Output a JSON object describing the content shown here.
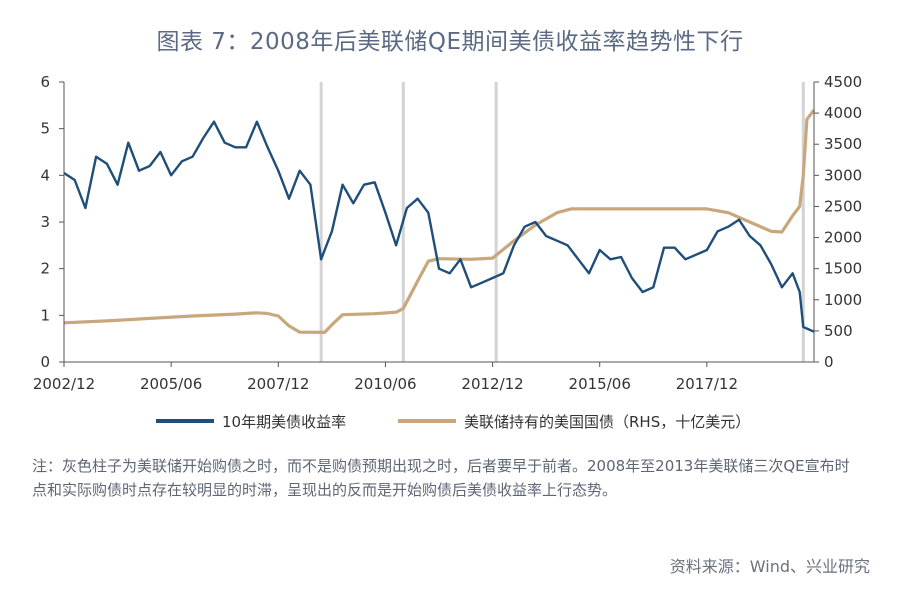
{
  "title": "图表 7：2008年后美联储QE期间美债收益率趋势性下行",
  "note": "注：灰色柱子为美联储开始购债之时，而不是购债预期出现之时，后者要早于前者。2008年至2013年美联储三次QE宣布时点和实际购债时点存在较明显的时滞，呈现出的反而是开始购债后美债收益率上行态势。",
  "source": "资料来源：Wind、兴业研究",
  "colors": {
    "yield": "#1f4e79",
    "holdings": "#c9a77c",
    "shade": "#d3d3d3",
    "axis": "#555555"
  },
  "chart_data": {
    "type": "line",
    "x_tick_labels": [
      "2002/12",
      "2005/06",
      "2007/12",
      "2010/06",
      "2012/12",
      "2015/06",
      "2017/12"
    ],
    "x_range": [
      "2002/12",
      "2020/06"
    ],
    "y_left": {
      "range": [
        0,
        6
      ],
      "ticks": [
        "0",
        "1",
        "2",
        "3",
        "4",
        "5",
        "6"
      ]
    },
    "y_right": {
      "range": [
        0,
        4500
      ],
      "ticks": [
        "0",
        "500",
        "1000",
        "1500",
        "2000",
        "2500",
        "3000",
        "3500",
        "4000",
        "4500"
      ]
    },
    "shaded_markers": [
      "2008/12",
      "2010/11",
      "2013/01",
      "2020/03"
    ],
    "series": [
      {
        "name": "10年期美债收益率",
        "axis": "left",
        "points": [
          [
            "2002/12",
            4.05
          ],
          [
            "2003/03",
            3.9
          ],
          [
            "2003/06",
            3.3
          ],
          [
            "2003/09",
            4.4
          ],
          [
            "2003/12",
            4.25
          ],
          [
            "2004/03",
            3.8
          ],
          [
            "2004/06",
            4.7
          ],
          [
            "2004/09",
            4.1
          ],
          [
            "2004/12",
            4.2
          ],
          [
            "2005/03",
            4.5
          ],
          [
            "2005/06",
            4.0
          ],
          [
            "2005/09",
            4.3
          ],
          [
            "2005/12",
            4.4
          ],
          [
            "2006/03",
            4.8
          ],
          [
            "2006/06",
            5.15
          ],
          [
            "2006/09",
            4.7
          ],
          [
            "2006/12",
            4.6
          ],
          [
            "2007/03",
            4.6
          ],
          [
            "2007/06",
            5.15
          ],
          [
            "2007/09",
            4.6
          ],
          [
            "2007/12",
            4.1
          ],
          [
            "2008/03",
            3.5
          ],
          [
            "2008/06",
            4.1
          ],
          [
            "2008/09",
            3.8
          ],
          [
            "2008/12",
            2.2
          ],
          [
            "2009/03",
            2.8
          ],
          [
            "2009/06",
            3.8
          ],
          [
            "2009/09",
            3.4
          ],
          [
            "2009/12",
            3.8
          ],
          [
            "2010/03",
            3.85
          ],
          [
            "2010/06",
            3.2
          ],
          [
            "2010/09",
            2.5
          ],
          [
            "2010/12",
            3.3
          ],
          [
            "2011/03",
            3.5
          ],
          [
            "2011/06",
            3.2
          ],
          [
            "2011/09",
            2.0
          ],
          [
            "2011/12",
            1.9
          ],
          [
            "2012/03",
            2.2
          ],
          [
            "2012/06",
            1.6
          ],
          [
            "2012/09",
            1.7
          ],
          [
            "2012/12",
            1.8
          ],
          [
            "2013/03",
            1.9
          ],
          [
            "2013/06",
            2.5
          ],
          [
            "2013/09",
            2.9
          ],
          [
            "2013/12",
            3.0
          ],
          [
            "2014/03",
            2.7
          ],
          [
            "2014/06",
            2.6
          ],
          [
            "2014/09",
            2.5
          ],
          [
            "2014/12",
            2.2
          ],
          [
            "2015/03",
            1.9
          ],
          [
            "2015/06",
            2.4
          ],
          [
            "2015/09",
            2.2
          ],
          [
            "2015/12",
            2.25
          ],
          [
            "2016/03",
            1.8
          ],
          [
            "2016/06",
            1.5
          ],
          [
            "2016/09",
            1.6
          ],
          [
            "2016/12",
            2.45
          ],
          [
            "2017/03",
            2.45
          ],
          [
            "2017/06",
            2.2
          ],
          [
            "2017/09",
            2.3
          ],
          [
            "2017/12",
            2.4
          ],
          [
            "2018/03",
            2.8
          ],
          [
            "2018/06",
            2.9
          ],
          [
            "2018/09",
            3.05
          ],
          [
            "2018/12",
            2.7
          ],
          [
            "2019/03",
            2.5
          ],
          [
            "2019/06",
            2.1
          ],
          [
            "2019/09",
            1.6
          ],
          [
            "2019/12",
            1.9
          ],
          [
            "2020/02",
            1.5
          ],
          [
            "2020/03",
            0.75
          ],
          [
            "2020/06",
            0.65
          ]
        ]
      },
      {
        "name": "美联储持有的美国国债（RHS，十亿美元）",
        "axis": "right",
        "points": [
          [
            "2002/12",
            630
          ],
          [
            "2003/12",
            660
          ],
          [
            "2004/12",
            700
          ],
          [
            "2005/12",
            740
          ],
          [
            "2006/12",
            770
          ],
          [
            "2007/06",
            790
          ],
          [
            "2007/09",
            780
          ],
          [
            "2007/12",
            740
          ],
          [
            "2008/03",
            580
          ],
          [
            "2008/06",
            480
          ],
          [
            "2009/01",
            475
          ],
          [
            "2009/03",
            600
          ],
          [
            "2009/06",
            760
          ],
          [
            "2010/03",
            777
          ],
          [
            "2010/09",
            800
          ],
          [
            "2010/11",
            860
          ],
          [
            "2011/03",
            1300
          ],
          [
            "2011/06",
            1620
          ],
          [
            "2011/09",
            1660
          ],
          [
            "2012/06",
            1650
          ],
          [
            "2012/12",
            1670
          ],
          [
            "2013/06",
            1950
          ],
          [
            "2013/12",
            2200
          ],
          [
            "2014/06",
            2400
          ],
          [
            "2014/10",
            2460
          ],
          [
            "2016/06",
            2460
          ],
          [
            "2017/12",
            2460
          ],
          [
            "2018/06",
            2400
          ],
          [
            "2018/12",
            2250
          ],
          [
            "2019/06",
            2100
          ],
          [
            "2019/09",
            2090
          ],
          [
            "2019/12",
            2350
          ],
          [
            "2020/02",
            2500
          ],
          [
            "2020/03",
            3000
          ],
          [
            "2020/04",
            3900
          ],
          [
            "2020/06",
            4050
          ]
        ]
      }
    ],
    "legend_position": "bottom",
    "grid": false
  }
}
